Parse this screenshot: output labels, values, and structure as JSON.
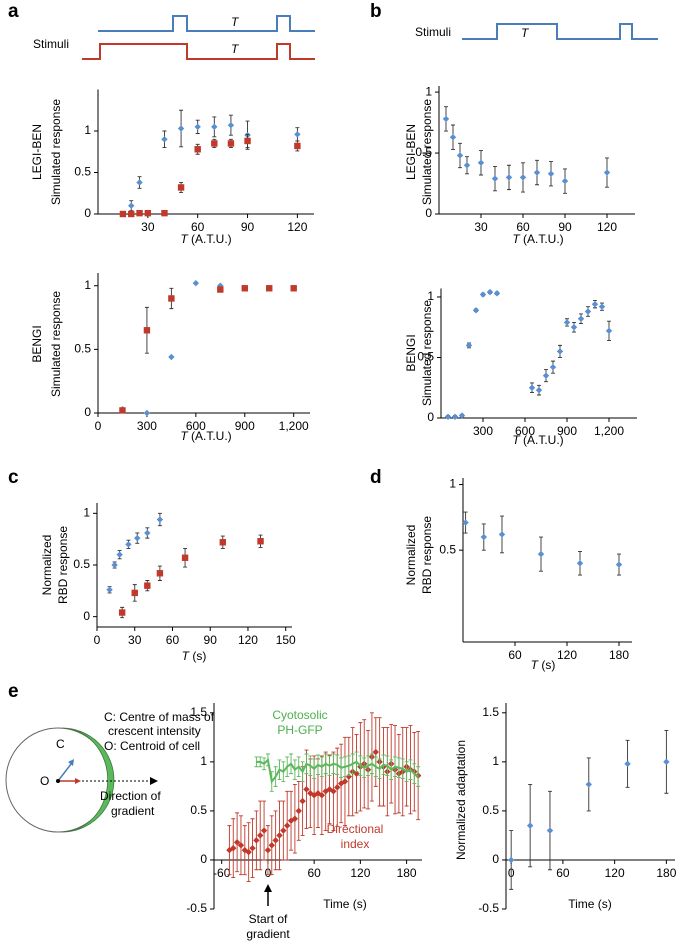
{
  "panel_labels": [
    "a",
    "b",
    "c",
    "d",
    "e"
  ],
  "stimuli_a": {
    "label": "Stimuli",
    "period_labels": [
      "T",
      "T"
    ]
  },
  "stimuli_b": {
    "label": "Stimuli",
    "period_label": "T"
  },
  "cell_diagram": {
    "legend": [
      "C: Centre of mass of",
      "crescent intensity",
      "O: Centroid of cell"
    ],
    "c_label": "C",
    "o_label": "O",
    "direction": [
      "Direction of",
      "gradient"
    ]
  },
  "chart_data": [
    {
      "type": "scatter",
      "ylabel": [
        "LEGI-BEN",
        "Simulated response"
      ],
      "xlabel": [
        "T",
        "(A.T.U.)"
      ],
      "xlim": [
        0,
        130
      ],
      "ylim": [
        0,
        1.5
      ],
      "xticks": [
        30,
        60,
        90,
        120
      ],
      "yticks": [
        0,
        0.5,
        1
      ],
      "series": [
        {
          "color": "#5b8fd4",
          "marker": "diamond",
          "x": [
            15,
            20,
            25,
            40,
            50,
            60,
            70,
            80,
            90,
            120
          ],
          "values": [
            0,
            0.1,
            0.38,
            0.9,
            1.03,
            1.05,
            1.05,
            1.07,
            0.95,
            0.96
          ],
          "errors": [
            null,
            0.06,
            0.07,
            0.1,
            0.22,
            0.08,
            0.12,
            0.12,
            0.17,
            0.08
          ]
        },
        {
          "color": "#c0392b",
          "marker": "square",
          "x": [
            15,
            20,
            25,
            30,
            40,
            50,
            60,
            70,
            80,
            90,
            120
          ],
          "values": [
            0,
            0,
            0.01,
            0.01,
            0.01,
            0.32,
            0.78,
            0.85,
            0.85,
            0.88,
            0.82
          ],
          "errors": [
            null,
            null,
            null,
            null,
            null,
            0.06,
            0.06,
            0.05,
            0.05,
            0.08,
            0.06
          ]
        }
      ]
    },
    {
      "type": "scatter",
      "ylabel": [
        "BENGI",
        "Simulated response"
      ],
      "xlabel": [
        "T",
        "(A.T.U.)"
      ],
      "xlim": [
        0,
        1300
      ],
      "ylim": [
        0,
        1.1
      ],
      "xticks": [
        0,
        300,
        600,
        900,
        {
          "value": 1200,
          "label": "1,200"
        }
      ],
      "yticks": [
        0,
        0.5,
        1
      ],
      "series": [
        {
          "color": "#5b8fd4",
          "marker": "diamond",
          "x": [
            150,
            300,
            450,
            600,
            750,
            900,
            1050,
            1200
          ],
          "values": [
            0.03,
            0,
            0.44,
            1.02,
            1.0,
            0.98,
            0.98,
            0.98
          ],
          "errors": [
            null,
            null,
            null,
            null,
            null,
            null,
            null,
            null
          ]
        },
        {
          "color": "#c0392b",
          "marker": "square",
          "x": [
            150,
            300,
            450,
            750,
            900,
            1050,
            1200
          ],
          "values": [
            0.02,
            0.65,
            0.9,
            0.97,
            0.98,
            0.98,
            0.98
          ],
          "errors": [
            0.02,
            0.18,
            0.08,
            0.02,
            null,
            null,
            null
          ]
        }
      ]
    },
    {
      "type": "scatter",
      "ylabel": [
        "LEGI-BEN",
        "Simulated response"
      ],
      "xlabel": [
        "T",
        "(A.T.U.)"
      ],
      "xlim": [
        0,
        140
      ],
      "ylim": [
        0,
        1.05
      ],
      "xticks": [
        30,
        60,
        90,
        120
      ],
      "yticks": [
        0,
        0.5,
        1
      ],
      "series": [
        {
          "color": "#5b8fd4",
          "marker": "diamond",
          "x": [
            5,
            10,
            15,
            20,
            30,
            40,
            50,
            60,
            70,
            80,
            90,
            120
          ],
          "values": [
            0.78,
            0.63,
            0.48,
            0.4,
            0.42,
            0.29,
            0.3,
            0.3,
            0.34,
            0.33,
            0.27,
            0.34
          ],
          "errors": [
            0.1,
            0.1,
            0.1,
            0.07,
            0.1,
            0.1,
            0.1,
            0.12,
            0.1,
            0.1,
            0.1,
            0.12
          ]
        }
      ]
    },
    {
      "type": "scatter",
      "ylabel": [
        "BENGI",
        "Simulated response"
      ],
      "xlabel": [
        "T",
        "(A.T.U.)"
      ],
      "xlim": [
        0,
        1400
      ],
      "ylim": [
        0,
        1.07
      ],
      "xticks": [
        300,
        600,
        900,
        {
          "value": 1200,
          "label": "1,200"
        }
      ],
      "yticks": [
        0,
        0.5,
        1
      ],
      "series": [
        {
          "color": "#5b8fd4",
          "marker": "diamond",
          "x": [
            50,
            100,
            150,
            200,
            250,
            300,
            350,
            400,
            650,
            700,
            750,
            800,
            850,
            900,
            950,
            1000,
            1050,
            1100,
            1150,
            1200
          ],
          "values": [
            0.01,
            0.01,
            0.02,
            0.6,
            0.89,
            1.02,
            1.04,
            1.03,
            0.25,
            0.23,
            0.35,
            0.42,
            0.55,
            0.79,
            0.75,
            0.82,
            0.88,
            0.94,
            0.92,
            0.72
          ],
          "errors": [
            0.01,
            0.01,
            0.01,
            0.02,
            0.01,
            0.01,
            0.01,
            0.01,
            0.04,
            0.04,
            0.05,
            0.05,
            0.05,
            0.03,
            0.04,
            0.04,
            0.04,
            0.03,
            0.03,
            0.08
          ]
        }
      ]
    },
    {
      "type": "scatter",
      "ylabel": [
        "Normalized",
        "RBD response"
      ],
      "xlabel": [
        "T",
        "(s)"
      ],
      "xlim": [
        0,
        155
      ],
      "ylim": [
        -0.1,
        1.1
      ],
      "xticks": [
        0,
        30,
        60,
        90,
        120,
        150
      ],
      "yticks": [
        0,
        0.5,
        1
      ],
      "series": [
        {
          "color": "#5b8fd4",
          "marker": "diamond",
          "x": [
            10,
            14,
            18,
            25,
            32,
            40,
            50
          ],
          "values": [
            0.26,
            0.5,
            0.6,
            0.7,
            0.76,
            0.81,
            0.94
          ],
          "errors": [
            0.03,
            0.03,
            0.04,
            0.04,
            0.05,
            0.05,
            0.06
          ]
        },
        {
          "color": "#c0392b",
          "marker": "square",
          "x": [
            20,
            30,
            40,
            50,
            70,
            100,
            130
          ],
          "values": [
            0.04,
            0.23,
            0.3,
            0.42,
            0.57,
            0.72,
            0.73
          ],
          "errors": [
            0.05,
            0.08,
            0.05,
            0.07,
            0.09,
            0.06,
            0.06
          ]
        }
      ]
    },
    {
      "type": "scatter",
      "ylabel": [
        "Normalized",
        "RBD response"
      ],
      "xlabel": [
        "T",
        "(s)"
      ],
      "xlim": [
        0,
        195
      ],
      "ylim": [
        -0.2,
        1.05
      ],
      "xticks": [
        60,
        120,
        180
      ],
      "yticks": [
        0.5,
        1
      ],
      "series": [
        {
          "color": "#5b8fd4",
          "marker": "diamond",
          "x": [
            3,
            24,
            45,
            90,
            135,
            180
          ],
          "values": [
            0.71,
            0.6,
            0.62,
            0.47,
            0.4,
            0.39
          ],
          "errors": [
            0.08,
            0.1,
            0.14,
            0.13,
            0.09,
            0.08
          ]
        }
      ]
    },
    {
      "type": "scatter",
      "xlabel": "Time (s)",
      "x_axis_at_zero": true,
      "xlim": [
        -70,
        200
      ],
      "ylim": [
        -0.5,
        1.6
      ],
      "xticks": [
        -60,
        0,
        60,
        120,
        180
      ],
      "yticks": [
        -0.5,
        0,
        0.5,
        1,
        1.5
      ],
      "annotations": [
        {
          "lines": [
            "Cyotosolic",
            "PH-GFP"
          ],
          "color": "#4caf50"
        },
        {
          "lines": [
            "Directional",
            "index"
          ],
          "color": "#c0392b"
        },
        {
          "lines": [
            "Start of",
            "gradient"
          ],
          "color": "#000000"
        }
      ],
      "series": [
        {
          "color": "#c0392b",
          "marker": "diamond",
          "x": [
            -50,
            -45,
            -40,
            -35,
            -30,
            -25,
            -20,
            -15,
            -10,
            -5,
            0,
            5,
            10,
            15,
            20,
            25,
            30,
            35,
            40,
            45,
            50,
            55,
            60,
            65,
            70,
            75,
            80,
            85,
            90,
            95,
            100,
            105,
            110,
            115,
            120,
            125,
            130,
            135,
            140,
            145,
            150,
            155,
            160,
            165,
            170,
            175,
            180,
            185,
            190,
            195
          ],
          "values": [
            0.1,
            0.12,
            0.18,
            0.15,
            0.1,
            0.08,
            0.12,
            0.2,
            0.25,
            0.3,
            0.1,
            0.15,
            0.2,
            0.25,
            0.3,
            0.35,
            0.4,
            0.42,
            0.5,
            0.6,
            0.72,
            0.68,
            0.66,
            0.68,
            0.66,
            0.7,
            0.72,
            0.7,
            0.74,
            0.78,
            0.8,
            0.85,
            0.9,
            0.88,
            0.95,
            0.98,
            0.92,
            1.05,
            1.1,
            1.0,
            0.95,
            0.9,
            0.98,
            0.92,
            0.88,
            0.9,
            0.95,
            0.92,
            0.9,
            0.86
          ],
          "errors": [
            0.25,
            0.3,
            0.3,
            0.3,
            0.25,
            0.3,
            0.3,
            0.3,
            0.35,
            0.3,
            0.25,
            0.3,
            0.3,
            0.35,
            0.3,
            0.35,
            0.3,
            0.35,
            0.3,
            0.35,
            0.4,
            0.35,
            0.4,
            0.35,
            0.4,
            0.4,
            0.35,
            0.4,
            0.4,
            0.4,
            0.45,
            0.4,
            0.45,
            0.4,
            0.45,
            0.45,
            0.4,
            0.45,
            0.35,
            0.45,
            0.4,
            0.45,
            0.4,
            0.45,
            0.4,
            0.45,
            0.4,
            0.45,
            0.4,
            0.45
          ]
        },
        {
          "color": "#5cb85c",
          "marker": "line",
          "x": [
            -15,
            -10,
            -5,
            0,
            5,
            10,
            15,
            20,
            25,
            30,
            35,
            40,
            45,
            50,
            55,
            60,
            65,
            70,
            75,
            80,
            85,
            90,
            95,
            100,
            105,
            110,
            115,
            120,
            125,
            130,
            135,
            140,
            145,
            150,
            155,
            160,
            165,
            170,
            175,
            180,
            185,
            190,
            195
          ],
          "values": [
            1.0,
            1.0,
            0.98,
            1.02,
            0.8,
            0.85,
            0.92,
            0.9,
            0.95,
            0.98,
            0.92,
            0.95,
            0.9,
            0.98,
            0.96,
            0.93,
            0.97,
            0.95,
            0.98,
            0.96,
            0.98,
            0.97,
            0.94,
            0.95,
            0.96,
            0.98,
            1.0,
            0.96,
            0.94,
            0.96,
            0.98,
            0.95,
            0.93,
            0.97,
            0.96,
            0.92,
            0.95,
            0.94,
            0.93,
            0.9,
            0.92,
            0.88,
            0.85
          ],
          "errors": [
            0.05,
            0.05,
            0.06,
            0.06,
            0.1,
            0.1,
            0.1,
            0.1,
            0.1,
            0.1,
            0.1,
            0.1,
            0.1,
            0.1,
            0.1,
            0.1,
            0.1,
            0.1,
            0.1,
            0.1,
            0.1,
            0.1,
            0.1,
            0.1,
            0.1,
            0.1,
            0.1,
            0.1,
            0.1,
            0.1,
            0.1,
            0.1,
            0.1,
            0.1,
            0.1,
            0.1,
            0.1,
            0.1,
            0.1,
            0.1,
            0.1,
            0.1,
            0.1
          ]
        }
      ]
    },
    {
      "type": "scatter",
      "ylabel": [
        "Normalized adaptation"
      ],
      "xlabel": "Time (s)",
      "x_axis_at_zero": true,
      "xlim": [
        -6,
        190
      ],
      "ylim": [
        -0.5,
        1.6
      ],
      "xticks": [
        0,
        60,
        120,
        180
      ],
      "yticks": [
        -0.5,
        0,
        0.5,
        1,
        1.5
      ],
      "series": [
        {
          "color": "#5b8fd4",
          "marker": "diamond",
          "x": [
            0,
            22,
            45,
            90,
            135,
            180
          ],
          "values": [
            0,
            0.35,
            0.3,
            0.77,
            0.98,
            1.0
          ],
          "errors": [
            0.3,
            0.42,
            0.4,
            0.27,
            0.24,
            0.32
          ]
        }
      ]
    }
  ]
}
